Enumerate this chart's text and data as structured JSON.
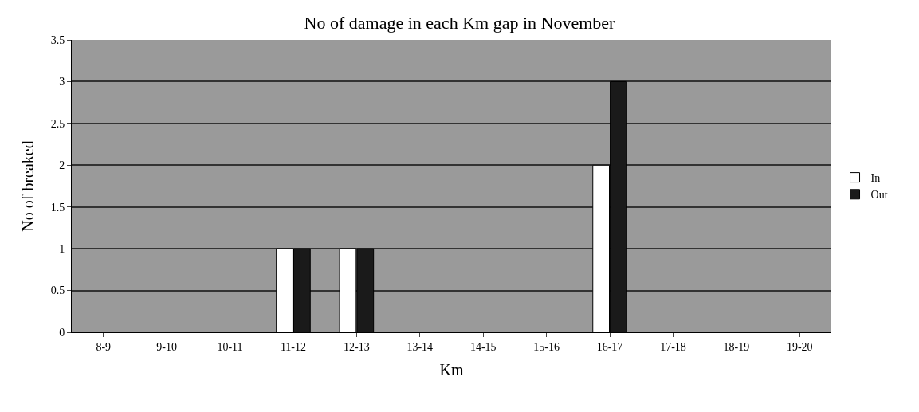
{
  "chart_data": {
    "type": "bar",
    "title": "No of damage in each Km gap in November",
    "xlabel": "Km",
    "ylabel": "No of breaked",
    "categories": [
      "8-9",
      "9-10",
      "10-11",
      "11-12",
      "12-13",
      "13-14",
      "14-15",
      "15-16",
      "16-17",
      "17-18",
      "18-19",
      "19-20"
    ],
    "series": [
      {
        "name": "In",
        "color": "#ffffff",
        "values": [
          0,
          0,
          0,
          1,
          1,
          0,
          0,
          0,
          2,
          0,
          0,
          0
        ]
      },
      {
        "name": "Out",
        "color": "#1a1a1a",
        "values": [
          0,
          0,
          0,
          1,
          1,
          0,
          0,
          0,
          3,
          0,
          0,
          0
        ]
      }
    ],
    "ylim": [
      0,
      3.5
    ],
    "yticks": [
      0,
      0.5,
      1,
      1.5,
      2,
      2.5,
      3,
      3.5
    ],
    "grid": "y",
    "legend": "right"
  }
}
